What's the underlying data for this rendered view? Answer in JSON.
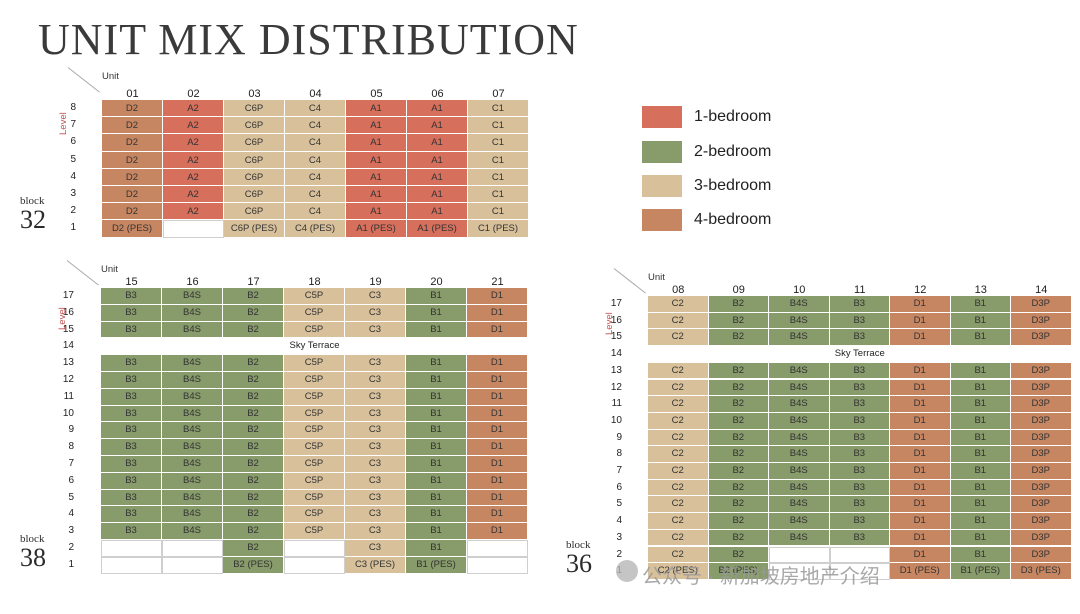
{
  "title": "UNIT MIX DISTRIBUTION",
  "colors": {
    "1-bedroom": "#d66f5c",
    "2-bedroom": "#889b6b",
    "3-bedroom": "#d8c09a",
    "4-bedroom": "#c78662",
    "sky": "#ffffff"
  },
  "legend": [
    {
      "key": "1-bedroom",
      "label": "1-bedroom"
    },
    {
      "key": "2-bedroom",
      "label": "2-bedroom"
    },
    {
      "key": "3-bedroom",
      "label": "3-bedroom"
    },
    {
      "key": "4-bedroom",
      "label": "4-bedroom"
    }
  ],
  "unit_caption": "Unit",
  "level_caption": "Level",
  "sky_terrace": "Sky Terrace",
  "block_word": "block",
  "watermark": "公众号 · 新加坡房地产介绍",
  "blocks": [
    {
      "id": "32",
      "units": [
        "01",
        "02",
        "03",
        "04",
        "05",
        "06",
        "07"
      ],
      "unit_types": [
        "4-bedroom",
        "1-bedroom",
        "3-bedroom",
        "3-bedroom",
        "1-bedroom",
        "1-bedroom",
        "3-bedroom"
      ],
      "rows": [
        {
          "level": "8",
          "cells": [
            "D2",
            "A2",
            "C6P",
            "C4",
            "A1",
            "A1",
            "C1"
          ]
        },
        {
          "level": "7",
          "cells": [
            "D2",
            "A2",
            "C6P",
            "C4",
            "A1",
            "A1",
            "C1"
          ]
        },
        {
          "level": "6",
          "cells": [
            "D2",
            "A2",
            "C6P",
            "C4",
            "A1",
            "A1",
            "C1"
          ]
        },
        {
          "level": "5",
          "cells": [
            "D2",
            "A2",
            "C6P",
            "C4",
            "A1",
            "A1",
            "C1"
          ]
        },
        {
          "level": "4",
          "cells": [
            "D2",
            "A2",
            "C6P",
            "C4",
            "A1",
            "A1",
            "C1"
          ]
        },
        {
          "level": "3",
          "cells": [
            "D2",
            "A2",
            "C6P",
            "C4",
            "A1",
            "A1",
            "C1"
          ]
        },
        {
          "level": "2",
          "cells": [
            "D2",
            "A2",
            "C6P",
            "C4",
            "A1",
            "A1",
            "C1"
          ]
        },
        {
          "level": "1",
          "cells": [
            "D2 (PES)",
            null,
            "C6P (PES)",
            "C4 (PES)",
            "A1 (PES)",
            "A1 (PES)",
            "C1 (PES)"
          ]
        }
      ]
    },
    {
      "id": "38",
      "units": [
        "15",
        "16",
        "17",
        "18",
        "19",
        "20",
        "21"
      ],
      "unit_types": [
        "2-bedroom",
        "2-bedroom",
        "2-bedroom",
        "3-bedroom",
        "3-bedroom",
        "2-bedroom",
        "4-bedroom"
      ],
      "rows": [
        {
          "level": "17",
          "cells": [
            "B3",
            "B4S",
            "B2",
            "C5P",
            "C3",
            "B1",
            "D1"
          ]
        },
        {
          "level": "16",
          "cells": [
            "B3",
            "B4S",
            "B2",
            "C5P",
            "C3",
            "B1",
            "D1"
          ]
        },
        {
          "level": "15",
          "cells": [
            "B3",
            "B4S",
            "B2",
            "C5P",
            "C3",
            "B1",
            "D1"
          ]
        },
        {
          "level": "14",
          "sky": true
        },
        {
          "level": "13",
          "cells": [
            "B3",
            "B4S",
            "B2",
            "C5P",
            "C3",
            "B1",
            "D1"
          ]
        },
        {
          "level": "12",
          "cells": [
            "B3",
            "B4S",
            "B2",
            "C5P",
            "C3",
            "B1",
            "D1"
          ]
        },
        {
          "level": "11",
          "cells": [
            "B3",
            "B4S",
            "B2",
            "C5P",
            "C3",
            "B1",
            "D1"
          ]
        },
        {
          "level": "10",
          "cells": [
            "B3",
            "B4S",
            "B2",
            "C5P",
            "C3",
            "B1",
            "D1"
          ]
        },
        {
          "level": "9",
          "cells": [
            "B3",
            "B4S",
            "B2",
            "C5P",
            "C3",
            "B1",
            "D1"
          ]
        },
        {
          "level": "8",
          "cells": [
            "B3",
            "B4S",
            "B2",
            "C5P",
            "C3",
            "B1",
            "D1"
          ]
        },
        {
          "level": "7",
          "cells": [
            "B3",
            "B4S",
            "B2",
            "C5P",
            "C3",
            "B1",
            "D1"
          ]
        },
        {
          "level": "6",
          "cells": [
            "B3",
            "B4S",
            "B2",
            "C5P",
            "C3",
            "B1",
            "D1"
          ]
        },
        {
          "level": "5",
          "cells": [
            "B3",
            "B4S",
            "B2",
            "C5P",
            "C3",
            "B1",
            "D1"
          ]
        },
        {
          "level": "4",
          "cells": [
            "B3",
            "B4S",
            "B2",
            "C5P",
            "C3",
            "B1",
            "D1"
          ]
        },
        {
          "level": "3",
          "cells": [
            "B3",
            "B4S",
            "B2",
            "C5P",
            "C3",
            "B1",
            "D1"
          ]
        },
        {
          "level": "2",
          "cells": [
            null,
            null,
            "B2",
            null,
            "C3",
            "B1",
            null
          ]
        },
        {
          "level": "1",
          "cells": [
            null,
            null,
            "B2 (PES)",
            null,
            "C3 (PES)",
            "B1 (PES)",
            null
          ]
        }
      ]
    },
    {
      "id": "36",
      "units": [
        "08",
        "09",
        "10",
        "11",
        "12",
        "13",
        "14"
      ],
      "unit_types": [
        "3-bedroom",
        "2-bedroom",
        "2-bedroom",
        "2-bedroom",
        "4-bedroom",
        "2-bedroom",
        "4-bedroom"
      ],
      "rows": [
        {
          "level": "17",
          "cells": [
            "C2",
            "B2",
            "B4S",
            "B3",
            "D1",
            "B1",
            "D3P"
          ]
        },
        {
          "level": "16",
          "cells": [
            "C2",
            "B2",
            "B4S",
            "B3",
            "D1",
            "B1",
            "D3P"
          ]
        },
        {
          "level": "15",
          "cells": [
            "C2",
            "B2",
            "B4S",
            "B3",
            "D1",
            "B1",
            "D3P"
          ]
        },
        {
          "level": "14",
          "sky": true
        },
        {
          "level": "13",
          "cells": [
            "C2",
            "B2",
            "B4S",
            "B3",
            "D1",
            "B1",
            "D3P"
          ]
        },
        {
          "level": "12",
          "cells": [
            "C2",
            "B2",
            "B4S",
            "B3",
            "D1",
            "B1",
            "D3P"
          ]
        },
        {
          "level": "11",
          "cells": [
            "C2",
            "B2",
            "B4S",
            "B3",
            "D1",
            "B1",
            "D3P"
          ]
        },
        {
          "level": "10",
          "cells": [
            "C2",
            "B2",
            "B4S",
            "B3",
            "D1",
            "B1",
            "D3P"
          ]
        },
        {
          "level": "9",
          "cells": [
            "C2",
            "B2",
            "B4S",
            "B3",
            "D1",
            "B1",
            "D3P"
          ]
        },
        {
          "level": "8",
          "cells": [
            "C2",
            "B2",
            "B4S",
            "B3",
            "D1",
            "B1",
            "D3P"
          ]
        },
        {
          "level": "7",
          "cells": [
            "C2",
            "B2",
            "B4S",
            "B3",
            "D1",
            "B1",
            "D3P"
          ]
        },
        {
          "level": "6",
          "cells": [
            "C2",
            "B2",
            "B4S",
            "B3",
            "D1",
            "B1",
            "D3P"
          ]
        },
        {
          "level": "5",
          "cells": [
            "C2",
            "B2",
            "B4S",
            "B3",
            "D1",
            "B1",
            "D3P"
          ]
        },
        {
          "level": "4",
          "cells": [
            "C2",
            "B2",
            "B4S",
            "B3",
            "D1",
            "B1",
            "D3P"
          ]
        },
        {
          "level": "3",
          "cells": [
            "C2",
            "B2",
            "B4S",
            "B3",
            "D1",
            "B1",
            "D3P"
          ]
        },
        {
          "level": "2",
          "cells": [
            "C2",
            "B2",
            null,
            null,
            "D1",
            "B1",
            "D3P"
          ]
        },
        {
          "level": "1",
          "cells": [
            "C2 (PES)",
            "B2 (PES)",
            null,
            null,
            "D1 (PES)",
            "B1 (PES)",
            "D3 (PES)"
          ]
        }
      ]
    }
  ]
}
